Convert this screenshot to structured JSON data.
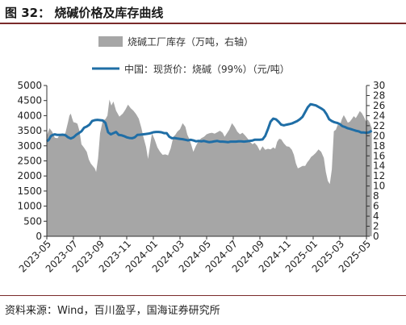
{
  "figure": {
    "title": "图 32：  烧碱价格及库存曲线",
    "source": "资料来源：Wind，百川盈孚，国海证券研究所"
  },
  "colors": {
    "area": "#a6a6a6",
    "line": "#1f6ea6",
    "rule": "#7a2a2a",
    "axis": "#333333"
  },
  "chart_data": {
    "type": "area",
    "legend_position": "top",
    "grid": false,
    "x_ticks": [
      "2023-05",
      "2023-07",
      "2023-09",
      "2023-11",
      "2024-01",
      "2024-03",
      "2024-05",
      "2024-07",
      "2024-09",
      "2024-11",
      "2025-01",
      "2025-03",
      "2025-05"
    ],
    "y_left": {
      "min": 0,
      "max": 5000,
      "ticks": [
        0,
        500,
        1000,
        1500,
        2000,
        2500,
        3000,
        3500,
        4000,
        4500,
        5000
      ]
    },
    "y_right": {
      "min": 0,
      "max": 30,
      "ticks": [
        0,
        2,
        4,
        6,
        8,
        10,
        12,
        14,
        16,
        18,
        20,
        22,
        24,
        26,
        28,
        30
      ]
    },
    "series": [
      {
        "name": "烧碱工厂库存（万吨，右轴）",
        "type": "area",
        "axis": "right",
        "points": [
          [
            0,
            20.0
          ],
          [
            0.2,
            21.5
          ],
          [
            0.4,
            20.8
          ],
          [
            0.6,
            19.6
          ],
          [
            0.8,
            19.5
          ],
          [
            1.0,
            20.3
          ],
          [
            1.2,
            20.0
          ],
          [
            1.4,
            20.6
          ],
          [
            1.6,
            22.8
          ],
          [
            1.7,
            24.0
          ],
          [
            1.8,
            24.4
          ],
          [
            1.9,
            23.5
          ],
          [
            2.0,
            22.7
          ],
          [
            2.15,
            22.6
          ],
          [
            2.3,
            22.4
          ],
          [
            2.45,
            21.0
          ],
          [
            2.6,
            18.3
          ],
          [
            2.8,
            17.6
          ],
          [
            3.0,
            16.8
          ],
          [
            3.15,
            15.3
          ],
          [
            3.3,
            14.5
          ],
          [
            3.45,
            14.0
          ],
          [
            3.6,
            13.5
          ],
          [
            3.7,
            12.8
          ],
          [
            3.85,
            15.5
          ],
          [
            4.0,
            20.5
          ],
          [
            4.2,
            23.0
          ],
          [
            4.4,
            23.3
          ],
          [
            4.55,
            24.0
          ],
          [
            4.7,
            27.2
          ],
          [
            4.85,
            26.0
          ],
          [
            5.0,
            26.8
          ],
          [
            5.2,
            25.0
          ],
          [
            5.45,
            23.8
          ],
          [
            5.7,
            24.4
          ],
          [
            5.9,
            25.2
          ],
          [
            6.1,
            26.2
          ],
          [
            6.3,
            25.5
          ],
          [
            6.5,
            25.0
          ],
          [
            6.7,
            24.3
          ],
          [
            6.9,
            23.4
          ],
          [
            7.1,
            21.6
          ],
          [
            7.25,
            19.8
          ],
          [
            7.45,
            17.8
          ],
          [
            7.6,
            15.4
          ],
          [
            7.75,
            18.0
          ],
          [
            7.9,
            20.5
          ],
          [
            8.1,
            19.2
          ],
          [
            8.3,
            17.7
          ],
          [
            8.5,
            16.8
          ],
          [
            8.7,
            16.2
          ],
          [
            8.9,
            16.3
          ],
          [
            9.1,
            16.1
          ],
          [
            9.3,
            17.5
          ],
          [
            9.5,
            19.8
          ],
          [
            9.65,
            20.2
          ],
          [
            9.8,
            20.8
          ],
          [
            10.0,
            21.3
          ],
          [
            10.2,
            22.5
          ],
          [
            10.4,
            21.8
          ],
          [
            10.55,
            20.2
          ],
          [
            10.7,
            19.4
          ],
          [
            10.85,
            18.2
          ],
          [
            11.0,
            16.8
          ],
          [
            11.2,
            18.0
          ],
          [
            11.4,
            19.0
          ],
          [
            11.6,
            19.5
          ],
          [
            11.8,
            19.8
          ],
          [
            12.0,
            20.3
          ],
          [
            12.2,
            20.5
          ],
          [
            12.4,
            20.6
          ],
          [
            12.6,
            20.4
          ],
          [
            12.8,
            20.7
          ],
          [
            13.0,
            21.0
          ],
          [
            13.2,
            20.6
          ],
          [
            13.35,
            19.8
          ],
          [
            13.5,
            20.4
          ],
          [
            13.7,
            21.2
          ],
          [
            13.9,
            22.5
          ],
          [
            14.1,
            21.8
          ],
          [
            14.3,
            20.8
          ],
          [
            14.5,
            20.3
          ],
          [
            14.7,
            20.6
          ],
          [
            14.9,
            20.0
          ],
          [
            15.1,
            19.4
          ],
          [
            15.25,
            18.8
          ],
          [
            15.45,
            18.3
          ],
          [
            15.6,
            18.6
          ],
          [
            15.8,
            18.0
          ],
          [
            16.0,
            17.0
          ],
          [
            16.2,
            17.9
          ],
          [
            16.4,
            17.2
          ],
          [
            16.6,
            17.4
          ],
          [
            16.8,
            17.3
          ],
          [
            17.0,
            17.7
          ],
          [
            17.15,
            17.4
          ],
          [
            17.3,
            18.8
          ],
          [
            17.45,
            19.4
          ],
          [
            17.6,
            19.3
          ],
          [
            17.8,
            18.5
          ],
          [
            18.0,
            17.9
          ],
          [
            18.2,
            17.8
          ],
          [
            18.4,
            17.2
          ],
          [
            18.55,
            16.2
          ],
          [
            18.7,
            14.5
          ],
          [
            18.85,
            13.5
          ],
          [
            19.0,
            13.7
          ],
          [
            19.2,
            14.0
          ],
          [
            19.4,
            14.0
          ],
          [
            19.55,
            14.7
          ],
          [
            19.7,
            15.2
          ],
          [
            19.85,
            15.8
          ],
          [
            20.0,
            16.1
          ],
          [
            20.2,
            16.6
          ],
          [
            20.4,
            17.3
          ],
          [
            20.6,
            16.8
          ],
          [
            20.8,
            15.6
          ],
          [
            20.95,
            12.8
          ],
          [
            21.1,
            11.0
          ],
          [
            21.25,
            10.4
          ],
          [
            21.4,
            13.3
          ],
          [
            21.55,
            20.9
          ],
          [
            21.7,
            21.2
          ],
          [
            21.85,
            22.2
          ],
          [
            22.0,
            22.0
          ],
          [
            22.15,
            23.3
          ],
          [
            22.3,
            24.1
          ],
          [
            22.45,
            23.4
          ],
          [
            22.6,
            22.6
          ],
          [
            22.75,
            22.8
          ],
          [
            22.9,
            23.3
          ],
          [
            23.05,
            23.9
          ],
          [
            23.2,
            23.5
          ],
          [
            23.35,
            24.2
          ],
          [
            23.5,
            24.9
          ],
          [
            23.65,
            24.5
          ],
          [
            23.8,
            23.8
          ],
          [
            23.95,
            22.9
          ],
          [
            24.1,
            23.2
          ],
          [
            24.25,
            22.6
          ],
          [
            24.4,
            21.5
          ]
        ]
      },
      {
        "name": "中国：现货价：烧碱（99%）（元/吨）",
        "type": "line",
        "axis": "left",
        "points": [
          [
            0,
            3150
          ],
          [
            0.15,
            3200
          ],
          [
            0.3,
            3320
          ],
          [
            0.45,
            3360
          ],
          [
            0.6,
            3380
          ],
          [
            0.8,
            3360
          ],
          [
            1.0,
            3360
          ],
          [
            1.2,
            3370
          ],
          [
            1.4,
            3350
          ],
          [
            1.6,
            3280
          ],
          [
            1.8,
            3240
          ],
          [
            2.0,
            3280
          ],
          [
            2.2,
            3360
          ],
          [
            2.4,
            3420
          ],
          [
            2.6,
            3480
          ],
          [
            2.8,
            3600
          ],
          [
            3.0,
            3640
          ],
          [
            3.2,
            3700
          ],
          [
            3.4,
            3820
          ],
          [
            3.6,
            3850
          ],
          [
            3.8,
            3860
          ],
          [
            4.0,
            3850
          ],
          [
            4.2,
            3840
          ],
          [
            4.4,
            3760
          ],
          [
            4.6,
            3450
          ],
          [
            4.8,
            3380
          ],
          [
            5.0,
            3420
          ],
          [
            5.2,
            3460
          ],
          [
            5.4,
            3360
          ],
          [
            5.6,
            3350
          ],
          [
            5.8,
            3320
          ],
          [
            6.0,
            3280
          ],
          [
            6.2,
            3260
          ],
          [
            6.4,
            3250
          ],
          [
            6.6,
            3280
          ],
          [
            6.8,
            3360
          ],
          [
            7.0,
            3370
          ],
          [
            7.2,
            3380
          ],
          [
            7.4,
            3390
          ],
          [
            7.6,
            3400
          ],
          [
            7.8,
            3420
          ],
          [
            8.0,
            3450
          ],
          [
            8.2,
            3460
          ],
          [
            8.4,
            3460
          ],
          [
            8.6,
            3450
          ],
          [
            8.8,
            3420
          ],
          [
            9.0,
            3420
          ],
          [
            9.2,
            3300
          ],
          [
            9.4,
            3250
          ],
          [
            9.6,
            3260
          ],
          [
            9.8,
            3240
          ],
          [
            10.0,
            3230
          ],
          [
            10.2,
            3220
          ],
          [
            10.4,
            3200
          ],
          [
            10.6,
            3180
          ],
          [
            10.8,
            3200
          ],
          [
            11.0,
            3180
          ],
          [
            11.2,
            3150
          ],
          [
            11.4,
            3160
          ],
          [
            11.6,
            3150
          ],
          [
            11.8,
            3160
          ],
          [
            12.0,
            3140
          ],
          [
            12.2,
            3120
          ],
          [
            12.4,
            3130
          ],
          [
            12.6,
            3150
          ],
          [
            12.8,
            3160
          ],
          [
            13.0,
            3140
          ],
          [
            13.2,
            3140
          ],
          [
            13.4,
            3130
          ],
          [
            13.6,
            3120
          ],
          [
            13.8,
            3140
          ],
          [
            14.0,
            3140
          ],
          [
            14.2,
            3140
          ],
          [
            14.4,
            3150
          ],
          [
            14.6,
            3150
          ],
          [
            14.8,
            3140
          ],
          [
            15.0,
            3150
          ],
          [
            15.2,
            3160
          ],
          [
            15.4,
            3170
          ],
          [
            15.6,
            3200
          ],
          [
            15.8,
            3200
          ],
          [
            16.0,
            3200
          ],
          [
            16.2,
            3210
          ],
          [
            16.4,
            3330
          ],
          [
            16.6,
            3550
          ],
          [
            16.8,
            3800
          ],
          [
            17.0,
            3900
          ],
          [
            17.2,
            3880
          ],
          [
            17.4,
            3800
          ],
          [
            17.6,
            3700
          ],
          [
            17.8,
            3680
          ],
          [
            18.0,
            3700
          ],
          [
            18.2,
            3720
          ],
          [
            18.4,
            3740
          ],
          [
            18.6,
            3780
          ],
          [
            18.8,
            3820
          ],
          [
            19.0,
            3880
          ],
          [
            19.2,
            3960
          ],
          [
            19.4,
            4120
          ],
          [
            19.6,
            4280
          ],
          [
            19.8,
            4380
          ],
          [
            20.0,
            4360
          ],
          [
            20.2,
            4340
          ],
          [
            20.4,
            4290
          ],
          [
            20.6,
            4240
          ],
          [
            20.8,
            4180
          ],
          [
            21.0,
            4050
          ],
          [
            21.2,
            3880
          ],
          [
            21.4,
            3820
          ],
          [
            21.6,
            3780
          ],
          [
            21.8,
            3760
          ],
          [
            22.0,
            3720
          ],
          [
            22.2,
            3650
          ],
          [
            22.4,
            3620
          ],
          [
            22.6,
            3580
          ],
          [
            22.8,
            3560
          ],
          [
            23.0,
            3530
          ],
          [
            23.2,
            3500
          ],
          [
            23.4,
            3480
          ],
          [
            23.6,
            3440
          ],
          [
            23.8,
            3440
          ],
          [
            24.0,
            3430
          ],
          [
            24.2,
            3450
          ],
          [
            24.4,
            3500
          ]
        ]
      }
    ]
  }
}
